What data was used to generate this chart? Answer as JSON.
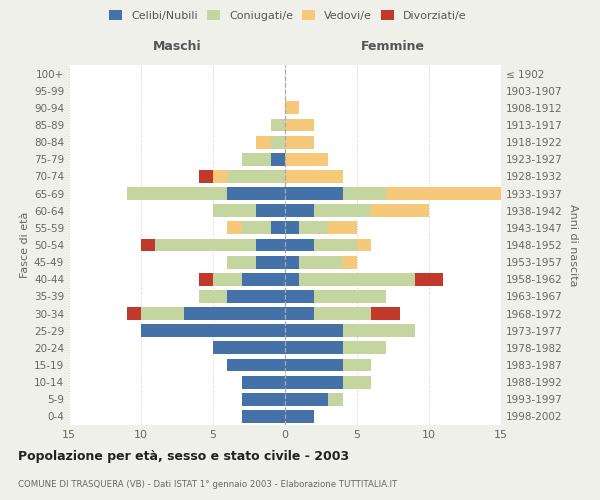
{
  "age_groups": [
    "0-4",
    "5-9",
    "10-14",
    "15-19",
    "20-24",
    "25-29",
    "30-34",
    "35-39",
    "40-44",
    "45-49",
    "50-54",
    "55-59",
    "60-64",
    "65-69",
    "70-74",
    "75-79",
    "80-84",
    "85-89",
    "90-94",
    "95-99",
    "100+"
  ],
  "birth_years": [
    "1998-2002",
    "1993-1997",
    "1988-1992",
    "1983-1987",
    "1978-1982",
    "1973-1977",
    "1968-1972",
    "1963-1967",
    "1958-1962",
    "1953-1957",
    "1948-1952",
    "1943-1947",
    "1938-1942",
    "1933-1937",
    "1928-1932",
    "1923-1927",
    "1918-1922",
    "1913-1917",
    "1908-1912",
    "1903-1907",
    "≤ 1902"
  ],
  "maschi": {
    "celibi": [
      3,
      3,
      3,
      4,
      5,
      10,
      7,
      4,
      3,
      2,
      2,
      1,
      2,
      4,
      0,
      1,
      0,
      0,
      0,
      0,
      0
    ],
    "coniugati": [
      0,
      0,
      0,
      0,
      0,
      0,
      3,
      2,
      2,
      2,
      7,
      2,
      3,
      7,
      4,
      2,
      1,
      1,
      0,
      0,
      0
    ],
    "vedovi": [
      0,
      0,
      0,
      0,
      0,
      0,
      0,
      0,
      0,
      0,
      0,
      1,
      0,
      0,
      1,
      0,
      1,
      0,
      0,
      0,
      0
    ],
    "divorziati": [
      0,
      0,
      0,
      0,
      0,
      0,
      1,
      0,
      1,
      0,
      1,
      0,
      0,
      0,
      1,
      0,
      0,
      0,
      0,
      0,
      0
    ]
  },
  "femmine": {
    "nubili": [
      2,
      3,
      4,
      4,
      4,
      4,
      2,
      2,
      1,
      1,
      2,
      1,
      2,
      4,
      0,
      0,
      0,
      0,
      0,
      0,
      0
    ],
    "coniugate": [
      0,
      1,
      2,
      2,
      3,
      5,
      4,
      5,
      8,
      3,
      3,
      2,
      4,
      3,
      0,
      0,
      0,
      0,
      0,
      0,
      0
    ],
    "vedove": [
      0,
      0,
      0,
      0,
      0,
      0,
      0,
      0,
      0,
      1,
      1,
      2,
      4,
      8,
      4,
      3,
      2,
      2,
      1,
      0,
      0
    ],
    "divorziate": [
      0,
      0,
      0,
      0,
      0,
      0,
      2,
      0,
      2,
      0,
      0,
      0,
      0,
      0,
      0,
      0,
      0,
      0,
      0,
      0,
      0
    ]
  },
  "colors": {
    "celibi": "#4472a8",
    "coniugati": "#c5d5a0",
    "vedovi": "#f5c87a",
    "divorziati": "#c0392b"
  },
  "xlim": 15,
  "title": "Popolazione per età, sesso e stato civile - 2003",
  "subtitle": "COMUNE DI TRASQUERA (VB) - Dati ISTAT 1° gennaio 2003 - Elaborazione TUTTITALIA.IT",
  "ylabel_left": "Fasce di età",
  "ylabel_right": "Anni di nascita",
  "xlabel_left": "Maschi",
  "xlabel_right": "Femmine",
  "bg_color": "#f0f0eb",
  "plot_bg_color": "#ffffff"
}
